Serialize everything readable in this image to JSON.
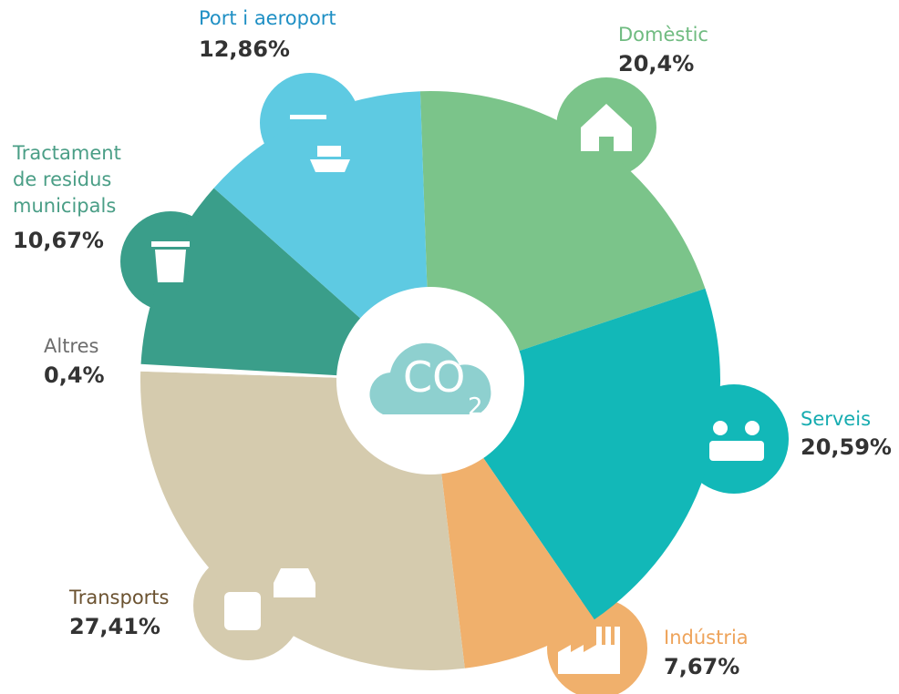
{
  "chart_data": {
    "type": "pie",
    "center_text": "CO",
    "center_subscript": "2",
    "start_angle": -2,
    "categories": [
      "Domèstic",
      "Serveis",
      "Indústria",
      "Transports",
      "Altres",
      "Tractament de residus municipals",
      "Port i aeroport"
    ],
    "values": [
      20.4,
      20.59,
      7.67,
      27.41,
      0.4,
      10.67,
      12.86
    ],
    "value_labels": [
      "20,4%",
      "20,59%",
      "7,67%",
      "27,41%",
      "0,4%",
      "10,67%",
      "12,86%"
    ],
    "colors": [
      "#7bc48a",
      "#12b8b8",
      "#f0b06c",
      "#d5cbae",
      "#ffffff",
      "#3a9e8a",
      "#5ecae2"
    ],
    "label_colors": [
      "#6fbb80",
      "#16acb0",
      "#eea35a",
      "#6b5230",
      "#6d6d6d",
      "#4a9e86",
      "#1e8fc4"
    ]
  }
}
